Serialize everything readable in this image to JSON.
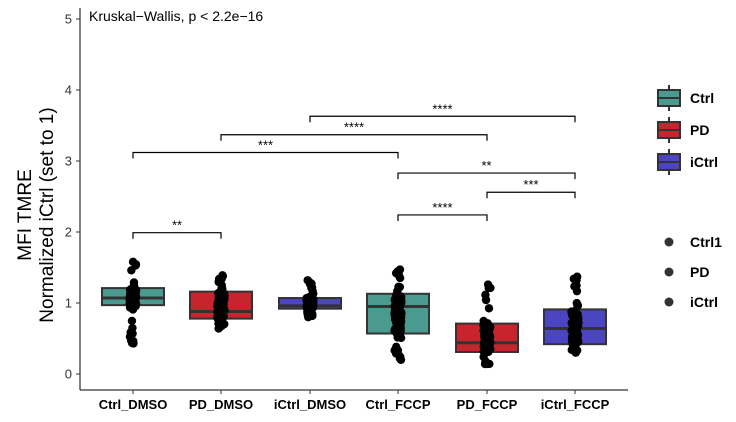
{
  "chart_data": {
    "type": "box",
    "annotation": "Kruskal−Wallis, p < 2.2e−16",
    "ylabel_lines": [
      "MFI TMRE",
      "Normalized iCtrl (set to 1)"
    ],
    "xlabel": "",
    "ylim": [
      0,
      5
    ],
    "yticks": [
      "0",
      "1",
      "2",
      "3",
      "4",
      "5"
    ],
    "categories": [
      "Ctrl_DMSO",
      "PD_DMSO",
      "iCtrl_DMSO",
      "Ctrl_FCCP",
      "PD_FCCP",
      "iCtrl_FCCP"
    ],
    "groups": [
      "Ctrl",
      "PD",
      "iCtrl",
      "Ctrl",
      "PD",
      "iCtrl"
    ],
    "colors": {
      "Ctrl": "#4a9a90",
      "PD": "#c8242e",
      "iCtrl": "#4b45c2"
    },
    "boxes": [
      {
        "q1": 0.97,
        "median": 1.07,
        "q3": 1.21,
        "points_min": 0.43,
        "points_max": 1.58
      },
      {
        "q1": 0.78,
        "median": 0.88,
        "q3": 1.16,
        "points_min": 0.64,
        "points_max": 1.39
      },
      {
        "q1": 0.92,
        "median": 0.96,
        "q3": 1.07,
        "points_min": 0.8,
        "points_max": 1.32
      },
      {
        "q1": 0.57,
        "median": 0.95,
        "q3": 1.13,
        "points_min": 0.2,
        "points_max": 1.47
      },
      {
        "q1": 0.31,
        "median": 0.44,
        "q3": 0.71,
        "points_min": 0.14,
        "points_max": 1.26
      },
      {
        "q1": 0.42,
        "median": 0.64,
        "q3": 0.91,
        "points_min": 0.3,
        "points_max": 1.37
      }
    ],
    "comparisons": [
      {
        "from": 0,
        "to": 1,
        "y": 1.99,
        "label": "**"
      },
      {
        "from": 0,
        "to": 3,
        "y": 3.12,
        "label": "***"
      },
      {
        "from": 1,
        "to": 4,
        "y": 3.37,
        "label": "****"
      },
      {
        "from": 2,
        "to": 5,
        "y": 3.63,
        "label": "****"
      },
      {
        "from": 3,
        "to": 4,
        "y": 2.24,
        "label": "****"
      },
      {
        "from": 3,
        "to": 5,
        "y": 2.83,
        "label": "**"
      },
      {
        "from": 4,
        "to": 5,
        "y": 2.56,
        "label": "***"
      }
    ],
    "legend_fill": [
      {
        "label": "Ctrl",
        "color": "#4a9a90"
      },
      {
        "label": "PD",
        "color": "#c8242e"
      },
      {
        "label": "iCtrl",
        "color": "#4b45c2"
      }
    ],
    "legend_points": [
      "Ctrl1",
      "PD",
      "iCtrl"
    ],
    "legend_position": "right",
    "grid": false
  }
}
